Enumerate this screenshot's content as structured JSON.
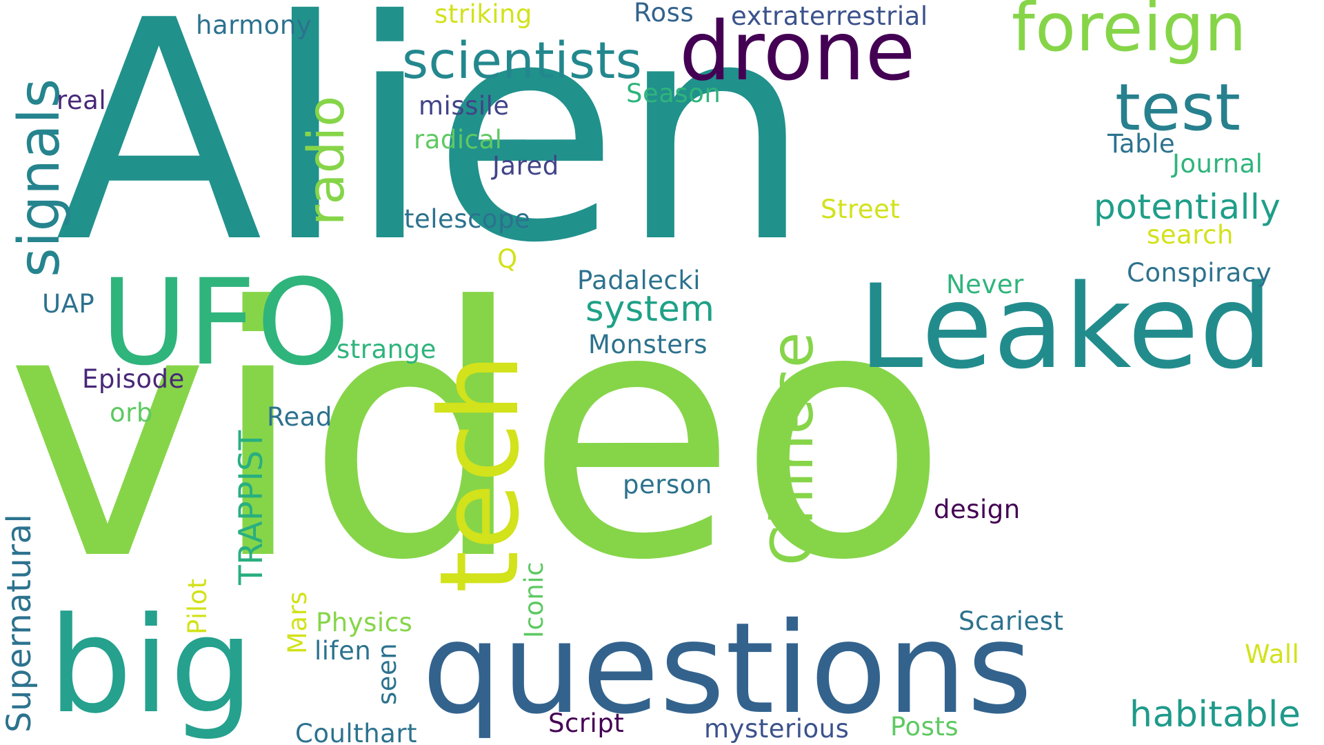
{
  "words": [
    {
      "text": "Alien",
      "color": "#21918c"
    },
    {
      "text": "video",
      "color": "#86d549"
    },
    {
      "text": "questions",
      "color": "#33638d"
    },
    {
      "text": "big",
      "color": "#25a18e"
    },
    {
      "text": "UFO",
      "color": "#2fb47c"
    },
    {
      "text": "Leaked",
      "color": "#228c8d"
    },
    {
      "text": "tech",
      "color": "#d2e21b"
    },
    {
      "text": "drone",
      "color": "#440154"
    },
    {
      "text": "foreign",
      "color": "#86d549"
    },
    {
      "text": "test",
      "color": "#27808e"
    },
    {
      "text": "scientists",
      "color": "#23888e"
    },
    {
      "text": "signals",
      "color": "#25848e"
    },
    {
      "text": "radio",
      "color": "#86d549"
    },
    {
      "text": "Chinese",
      "color": "#86d549"
    },
    {
      "text": "potentially",
      "color": "#1f9e89"
    },
    {
      "text": "system",
      "color": "#1fa187"
    },
    {
      "text": "habitable",
      "color": "#1f9a8a"
    },
    {
      "text": "Supernatural",
      "color": "#2c728e"
    },
    {
      "text": "TRAPPIST",
      "color": "#29af7f"
    },
    {
      "text": "Conspiracy",
      "color": "#2c728e"
    },
    {
      "text": "Padalecki",
      "color": "#2c728e"
    },
    {
      "text": "telescope",
      "color": "#2c728e"
    },
    {
      "text": "Monsters",
      "color": "#2c728e"
    },
    {
      "text": "extraterrestrial",
      "color": "#3b528b"
    },
    {
      "text": "Scariest",
      "color": "#2c728e"
    },
    {
      "text": "Coulthart",
      "color": "#2c728e"
    },
    {
      "text": "mysterious",
      "color": "#3b528b"
    },
    {
      "text": "Episode",
      "color": "#482878"
    },
    {
      "text": "missile",
      "color": "#414487"
    },
    {
      "text": "Jared",
      "color": "#414487"
    },
    {
      "text": "design",
      "color": "#440154"
    },
    {
      "text": "Script",
      "color": "#440154"
    },
    {
      "text": "real",
      "color": "#482878"
    },
    {
      "text": "harmony",
      "color": "#2c728e"
    },
    {
      "text": "Ross",
      "color": "#33638d"
    },
    {
      "text": "person",
      "color": "#2c728e"
    },
    {
      "text": "lifen",
      "color": "#2c728e"
    },
    {
      "text": "Read",
      "color": "#2c728e"
    },
    {
      "text": "UAP",
      "color": "#2c728e"
    },
    {
      "text": "Table",
      "color": "#2c728e"
    },
    {
      "text": "Season",
      "color": "#2fb47c"
    },
    {
      "text": "Journal",
      "color": "#2fb47c"
    },
    {
      "text": "Never",
      "color": "#2fb47c"
    },
    {
      "text": "strange",
      "color": "#2fb47c"
    },
    {
      "text": "Posts",
      "color": "#5ec962"
    },
    {
      "text": "radical",
      "color": "#5ec962"
    },
    {
      "text": "orb",
      "color": "#5ec962"
    },
    {
      "text": "Physics",
      "color": "#86d549"
    },
    {
      "text": "Iconic",
      "color": "#5ec962"
    },
    {
      "text": "seen",
      "color": "#2c728e"
    },
    {
      "text": "striking",
      "color": "#d2e21b"
    },
    {
      "text": "Street",
      "color": "#d2e21b"
    },
    {
      "text": "search",
      "color": "#d2e21b"
    },
    {
      "text": "Wall",
      "color": "#d2e21b"
    },
    {
      "text": "Q",
      "color": "#d2e21b"
    },
    {
      "text": "Pilot",
      "color": "#d2e21b"
    },
    {
      "text": "Mars",
      "color": "#d2e21b"
    }
  ]
}
